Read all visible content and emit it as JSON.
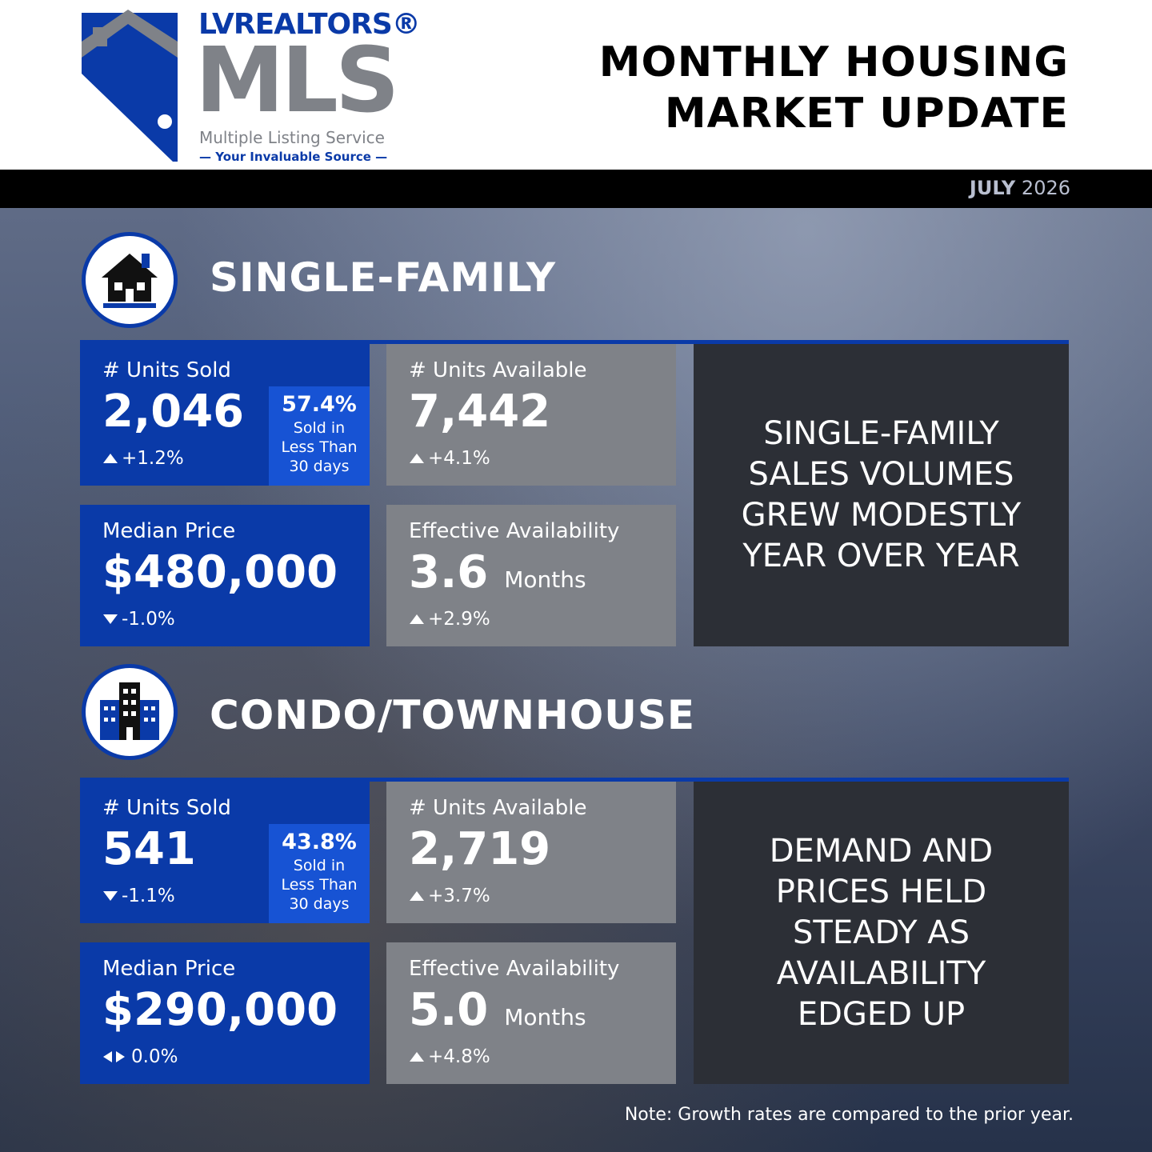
{
  "header": {
    "logo_brand": "LVREALTORS®",
    "logo_mls": "MLS",
    "logo_line1": "Multiple Listing Service",
    "logo_line2": "— Your Invaluable Source —",
    "title_line1": "MONTHLY HOUSING",
    "title_line2": "MARKET UPDATE"
  },
  "date": {
    "month": "JULY",
    "year": "2026"
  },
  "sections": [
    {
      "title": "SINGLE-FAMILY",
      "units_sold": {
        "label": "# Units Sold",
        "value": "2,046",
        "change": "+1.2%",
        "trend": "up",
        "fast_pct": "57.4%",
        "fast_text": [
          "Sold in",
          "Less Than",
          "30 days"
        ]
      },
      "units_available": {
        "label": "# Units Available",
        "value": "7,442",
        "change": "+4.1%",
        "trend": "up"
      },
      "median_price": {
        "label": "Median Price",
        "value": "$480,000",
        "change": "-1.0%",
        "trend": "down"
      },
      "effective_availability": {
        "label": "Effective Availability",
        "value": "3.6",
        "unit": "Months",
        "change": "+2.9%",
        "trend": "up"
      },
      "summary": [
        "SINGLE-FAMILY",
        "SALES VOLUMES",
        "GREW MODESTLY",
        "YEAR OVER YEAR"
      ]
    },
    {
      "title": "CONDO/TOWNHOUSE",
      "units_sold": {
        "label": "# Units Sold",
        "value": "541",
        "change": "-1.1%",
        "trend": "down",
        "fast_pct": "43.8%",
        "fast_text": [
          "Sold in",
          "Less Than",
          "30 days"
        ]
      },
      "units_available": {
        "label": "# Units Available",
        "value": "2,719",
        "change": "+3.7%",
        "trend": "up"
      },
      "median_price": {
        "label": "Median Price",
        "value": "$290,000",
        "change": "0.0%",
        "trend": "flat"
      },
      "effective_availability": {
        "label": "Effective Availability",
        "value": "5.0",
        "unit": "Months",
        "change": "+4.8%",
        "trend": "up"
      },
      "summary": [
        "DEMAND AND",
        "PRICES HELD",
        "STEADY AS",
        "AVAILABILITY",
        "EDGED UP"
      ]
    }
  ],
  "note": "Note: Growth rates are compared to the prior year."
}
